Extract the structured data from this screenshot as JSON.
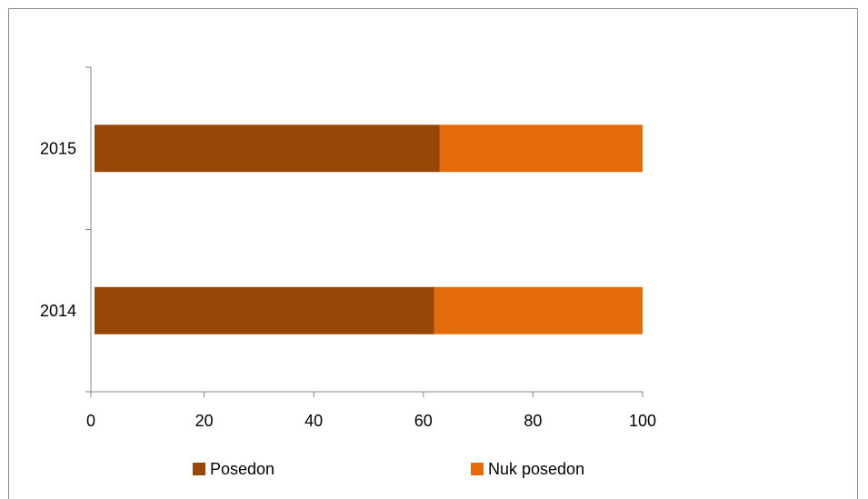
{
  "chart_data": {
    "type": "bar",
    "orientation": "horizontal",
    "stacked": true,
    "categories": [
      "2014",
      "2015"
    ],
    "series": [
      {
        "name": "Posedon",
        "values": [
          62,
          63
        ],
        "color": "#974706"
      },
      {
        "name": "Nuk posedon",
        "values": [
          38,
          37
        ],
        "color": "#e46c0a"
      }
    ],
    "xlim": [
      0,
      100
    ],
    "xticks": [
      0,
      20,
      40,
      60,
      80,
      100
    ],
    "grid": false,
    "legend_position": "bottom"
  }
}
